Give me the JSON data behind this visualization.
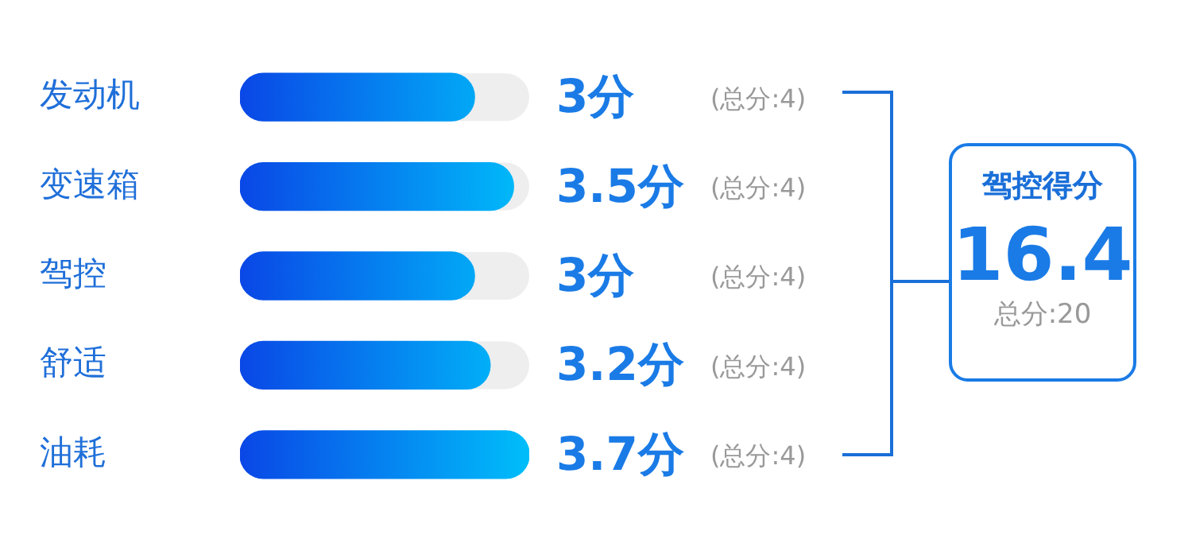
{
  "chart_data": {
    "type": "bar",
    "orientation": "horizontal",
    "categories": [
      "发动机",
      "变速箱",
      "驾控",
      "舒适",
      "油耗"
    ],
    "series": [
      {
        "color": "#0a47e6",
        "values": [
          3,
          3.5,
          3,
          3.2,
          3.7
        ],
        "value_labels": [
          "3分",
          "3.5分",
          "3分",
          "3.2分",
          "3.7分"
        ]
      }
    ],
    "annotations": [
      "(总分:4)",
      "(总分:4)",
      "(总分:4)",
      "(总分:4)",
      "(总分:4)",
      "驾控得分",
      "16.4",
      "总分:20"
    ],
    "legend": false
  }
}
